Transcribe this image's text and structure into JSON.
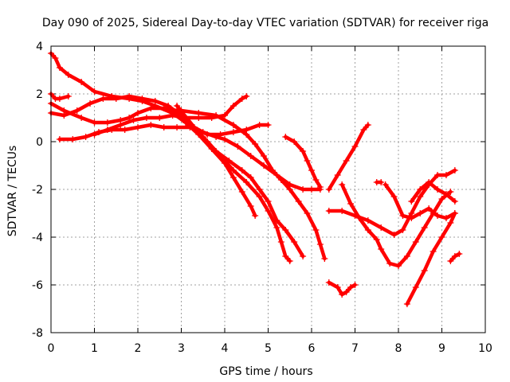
{
  "chart_data": {
    "type": "scatter",
    "title": "Day 090 of 2025, Sidereal Day-to-day VTEC variation (SDTVAR) for receiver riga",
    "xlabel": "GPS time / hours",
    "ylabel": "SDTVAR / TECUs",
    "xlim": [
      0,
      10
    ],
    "ylim": [
      -8,
      4
    ],
    "xticks": [
      "0",
      "1",
      "2",
      "3",
      "4",
      "5",
      "6",
      "7",
      "8",
      "9",
      "10"
    ],
    "yticks": [
      "-8",
      "-6",
      "-4",
      "-2",
      "0",
      "2",
      "4"
    ],
    "grid": true,
    "marker": "+",
    "color": "#ff0000",
    "series": [
      {
        "name": "trace-1",
        "points": [
          [
            0.0,
            3.7
          ],
          [
            0.1,
            3.5
          ],
          [
            0.2,
            3.1
          ],
          [
            0.4,
            2.8
          ],
          [
            0.7,
            2.5
          ],
          [
            1.0,
            2.1
          ],
          [
            1.4,
            1.9
          ],
          [
            1.8,
            1.8
          ],
          [
            2.1,
            1.7
          ],
          [
            2.4,
            1.5
          ],
          [
            2.8,
            1.2
          ],
          [
            3.1,
            0.8
          ],
          [
            3.4,
            0.3
          ],
          [
            3.7,
            -0.3
          ],
          [
            4.0,
            -0.9
          ],
          [
            4.2,
            -1.5
          ],
          [
            4.4,
            -2.1
          ],
          [
            4.6,
            -2.7
          ],
          [
            4.7,
            -3.1
          ]
        ]
      },
      {
        "name": "trace-2",
        "points": [
          [
            0.0,
            2.0
          ],
          [
            0.1,
            1.8
          ],
          [
            0.2,
            1.8
          ],
          [
            0.4,
            1.9
          ]
        ]
      },
      {
        "name": "trace-3",
        "points": [
          [
            0.0,
            1.6
          ],
          [
            0.3,
            1.3
          ],
          [
            0.7,
            1.0
          ],
          [
            1.0,
            0.8
          ],
          [
            1.3,
            0.8
          ],
          [
            1.6,
            0.9
          ],
          [
            1.8,
            1.0
          ],
          [
            2.0,
            1.2
          ],
          [
            2.3,
            1.4
          ],
          [
            2.6,
            1.4
          ],
          [
            2.9,
            1.3
          ],
          [
            3.1,
            1.0
          ],
          [
            3.3,
            0.6
          ],
          [
            3.6,
            0.0
          ],
          [
            3.9,
            -0.6
          ],
          [
            4.2,
            -1.2
          ],
          [
            4.5,
            -1.7
          ],
          [
            4.8,
            -2.3
          ],
          [
            5.0,
            -2.9
          ],
          [
            5.2,
            -3.6
          ],
          [
            5.3,
            -4.2
          ],
          [
            5.4,
            -4.8
          ],
          [
            5.5,
            -5.0
          ]
        ]
      },
      {
        "name": "trace-4",
        "points": [
          [
            0.0,
            1.2
          ],
          [
            0.3,
            1.1
          ],
          [
            0.6,
            1.3
          ],
          [
            0.9,
            1.6
          ],
          [
            1.2,
            1.8
          ],
          [
            1.5,
            1.8
          ],
          [
            1.8,
            1.9
          ],
          [
            2.1,
            1.8
          ],
          [
            2.4,
            1.7
          ],
          [
            2.7,
            1.5
          ],
          [
            3.0,
            1.1
          ],
          [
            3.2,
            0.7
          ],
          [
            3.5,
            0.2
          ],
          [
            3.8,
            -0.4
          ],
          [
            4.1,
            -0.8
          ],
          [
            4.4,
            -1.2
          ],
          [
            4.6,
            -1.5
          ],
          [
            4.8,
            -2.0
          ],
          [
            5.0,
            -2.5
          ],
          [
            5.2,
            -3.3
          ],
          [
            5.4,
            -3.7
          ],
          [
            5.6,
            -4.2
          ],
          [
            5.8,
            -4.8
          ]
        ]
      },
      {
        "name": "trace-5",
        "points": [
          [
            0.2,
            0.1
          ],
          [
            0.5,
            0.1
          ],
          [
            0.8,
            0.2
          ],
          [
            1.1,
            0.4
          ],
          [
            1.4,
            0.5
          ],
          [
            1.7,
            0.5
          ],
          [
            2.0,
            0.6
          ],
          [
            2.3,
            0.7
          ],
          [
            2.6,
            0.6
          ],
          [
            2.9,
            0.6
          ],
          [
            3.2,
            0.6
          ],
          [
            3.5,
            0.4
          ],
          [
            3.8,
            0.2
          ],
          [
            4.0,
            0.1
          ],
          [
            4.3,
            -0.2
          ],
          [
            4.6,
            -0.6
          ],
          [
            4.9,
            -1.0
          ],
          [
            5.2,
            -1.4
          ],
          [
            5.5,
            -1.8
          ],
          [
            5.8,
            -2.0
          ],
          [
            6.0,
            -2.0
          ],
          [
            6.2,
            -2.0
          ]
        ]
      },
      {
        "name": "trace-6",
        "points": [
          [
            1.0,
            0.3
          ],
          [
            1.3,
            0.5
          ],
          [
            1.6,
            0.7
          ],
          [
            1.9,
            0.9
          ],
          [
            2.2,
            1.0
          ],
          [
            2.5,
            1.0
          ],
          [
            2.8,
            1.1
          ],
          [
            3.1,
            1.0
          ],
          [
            3.4,
            1.0
          ],
          [
            3.7,
            1.0
          ],
          [
            4.0,
            1.1
          ],
          [
            4.2,
            1.5
          ],
          [
            4.4,
            1.8
          ],
          [
            4.5,
            1.9
          ]
        ]
      },
      {
        "name": "trace-7",
        "points": [
          [
            2.9,
            1.5
          ],
          [
            3.3,
            0.6
          ],
          [
            3.6,
            0.3
          ],
          [
            3.9,
            0.3
          ],
          [
            4.2,
            0.4
          ],
          [
            4.5,
            0.5
          ],
          [
            4.8,
            0.7
          ],
          [
            5.0,
            0.7
          ]
        ]
      },
      {
        "name": "trace-8",
        "points": [
          [
            3.0,
            1.3
          ],
          [
            3.4,
            1.2
          ],
          [
            3.8,
            1.1
          ],
          [
            4.2,
            0.7
          ],
          [
            4.5,
            0.3
          ],
          [
            4.7,
            -0.1
          ],
          [
            4.9,
            -0.6
          ],
          [
            5.1,
            -1.2
          ],
          [
            5.3,
            -1.6
          ],
          [
            5.5,
            -2.0
          ],
          [
            5.7,
            -2.5
          ],
          [
            5.9,
            -3.0
          ],
          [
            6.1,
            -3.7
          ],
          [
            6.2,
            -4.3
          ],
          [
            6.3,
            -4.9
          ]
        ]
      },
      {
        "name": "trace-9",
        "points": [
          [
            5.4,
            0.2
          ],
          [
            5.6,
            0.0
          ],
          [
            5.8,
            -0.4
          ],
          [
            5.9,
            -0.8
          ],
          [
            6.0,
            -1.2
          ],
          [
            6.1,
            -1.6
          ],
          [
            6.2,
            -1.9
          ]
        ]
      },
      {
        "name": "trace-10",
        "points": [
          [
            6.4,
            -2.0
          ],
          [
            6.6,
            -1.4
          ],
          [
            6.8,
            -0.8
          ],
          [
            7.0,
            -0.2
          ],
          [
            7.2,
            0.5
          ],
          [
            7.3,
            0.7
          ]
        ]
      },
      {
        "name": "trace-11",
        "points": [
          [
            6.7,
            -1.8
          ],
          [
            6.9,
            -2.6
          ],
          [
            7.1,
            -3.2
          ],
          [
            7.3,
            -3.7
          ],
          [
            7.5,
            -4.1
          ],
          [
            7.6,
            -4.5
          ],
          [
            7.8,
            -5.1
          ],
          [
            8.0,
            -5.2
          ],
          [
            8.2,
            -4.8
          ],
          [
            8.4,
            -4.2
          ],
          [
            8.6,
            -3.6
          ],
          [
            8.8,
            -3.0
          ],
          [
            9.0,
            -2.4
          ],
          [
            9.2,
            -2.1
          ]
        ]
      },
      {
        "name": "trace-12",
        "points": [
          [
            6.4,
            -2.9
          ],
          [
            6.7,
            -2.9
          ],
          [
            7.0,
            -3.1
          ],
          [
            7.3,
            -3.3
          ],
          [
            7.6,
            -3.6
          ],
          [
            7.9,
            -3.9
          ],
          [
            8.1,
            -3.7
          ],
          [
            8.3,
            -3.0
          ],
          [
            8.5,
            -2.3
          ],
          [
            8.7,
            -1.8
          ],
          [
            8.9,
            -1.4
          ],
          [
            9.1,
            -1.4
          ],
          [
            9.3,
            -1.2
          ]
        ]
      },
      {
        "name": "trace-13",
        "points": [
          [
            7.7,
            -1.8
          ],
          [
            7.9,
            -2.3
          ],
          [
            8.1,
            -3.1
          ],
          [
            8.3,
            -3.2
          ],
          [
            8.5,
            -3.0
          ],
          [
            8.7,
            -2.8
          ],
          [
            8.9,
            -3.1
          ],
          [
            9.1,
            -3.2
          ],
          [
            9.3,
            -3.0
          ]
        ]
      },
      {
        "name": "trace-14",
        "points": [
          [
            8.2,
            -6.8
          ],
          [
            8.4,
            -6.1
          ],
          [
            8.6,
            -5.4
          ],
          [
            8.8,
            -4.6
          ],
          [
            9.0,
            -4.0
          ],
          [
            9.2,
            -3.4
          ],
          [
            9.3,
            -3.0
          ]
        ]
      },
      {
        "name": "trace-15",
        "points": [
          [
            8.3,
            -2.5
          ],
          [
            8.5,
            -2.0
          ],
          [
            8.7,
            -1.7
          ],
          [
            8.9,
            -2.0
          ],
          [
            9.1,
            -2.2
          ],
          [
            9.3,
            -2.5
          ]
        ]
      },
      {
        "name": "trace-16",
        "points": [
          [
            6.4,
            -5.9
          ],
          [
            6.6,
            -6.1
          ],
          [
            6.7,
            -6.4
          ],
          [
            6.8,
            -6.3
          ],
          [
            6.9,
            -6.1
          ],
          [
            7.0,
            -6.0
          ]
        ]
      },
      {
        "name": "trace-17",
        "points": [
          [
            9.2,
            -5.0
          ],
          [
            9.3,
            -4.8
          ],
          [
            9.4,
            -4.7
          ]
        ]
      },
      {
        "name": "trace-18",
        "points": [
          [
            7.6,
            -1.7
          ],
          [
            7.5,
            -1.7
          ]
        ]
      }
    ]
  }
}
